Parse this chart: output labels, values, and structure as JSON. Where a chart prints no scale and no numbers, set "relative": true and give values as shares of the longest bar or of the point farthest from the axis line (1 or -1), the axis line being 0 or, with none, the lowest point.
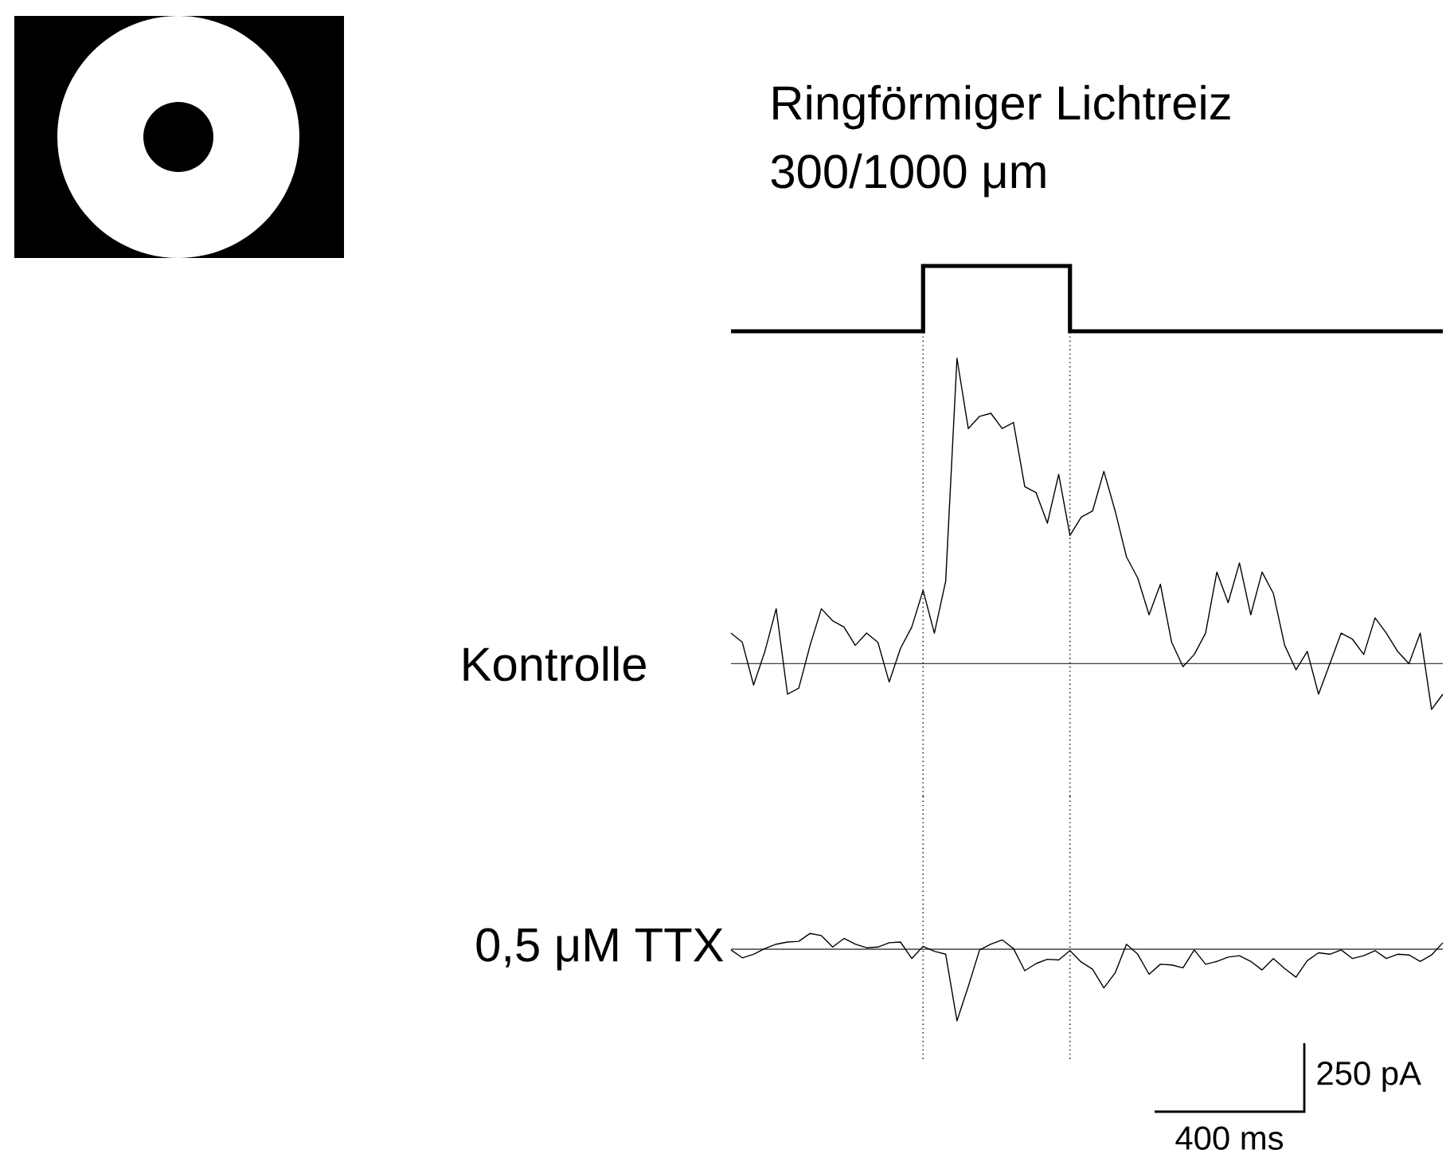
{
  "chart_data": [
    {
      "type": "step",
      "title": "Ringförmiger Lichtreiz",
      "subtitle": "300/1000 μm",
      "relative": true,
      "color": "#000000",
      "categories": [
        null,
        null,
        null,
        null,
        null,
        null,
        null,
        null,
        null,
        null,
        null,
        null,
        null,
        null,
        null,
        null,
        null,
        null,
        null,
        null,
        null,
        null,
        null,
        null,
        null,
        null,
        null,
        null,
        null,
        null,
        null,
        null,
        null,
        null,
        null,
        null,
        null,
        null,
        null,
        null,
        null,
        null,
        null,
        null,
        null,
        null,
        null,
        null,
        null,
        null,
        null,
        null,
        null,
        null,
        null,
        null,
        null,
        null,
        null,
        null,
        null,
        null,
        null,
        null
      ],
      "values": [
        0,
        0,
        0,
        0,
        0,
        0,
        0,
        0,
        0,
        0,
        0,
        0,
        0,
        0,
        0,
        0,
        0,
        1,
        1,
        1,
        1,
        1,
        1,
        1,
        1,
        1,
        1,
        1,
        1,
        1,
        0,
        0,
        0,
        0,
        0,
        0,
        0,
        0,
        0,
        0,
        0,
        0,
        0,
        0,
        0,
        0,
        0,
        0,
        0,
        0,
        0,
        0,
        0,
        0,
        0,
        0,
        0,
        0,
        0,
        0,
        0,
        0,
        0,
        0
      ]
    },
    {
      "type": "line",
      "relative": true,
      "categories": [
        null,
        null,
        null,
        null,
        null,
        null,
        null,
        null,
        null,
        null,
        null,
        null,
        null,
        null,
        null,
        null,
        null,
        null,
        null,
        null,
        null,
        null,
        null,
        null,
        null,
        null,
        null,
        null,
        null,
        null,
        null,
        null,
        null,
        null,
        null,
        null,
        null,
        null,
        null,
        null,
        null,
        null,
        null,
        null,
        null,
        null,
        null,
        null,
        null,
        null,
        null,
        null,
        null,
        null,
        null,
        null,
        null,
        null,
        null,
        null,
        null,
        null,
        null,
        null
      ],
      "series": [
        {
          "name": "Kontrolle",
          "color": "#000000",
          "values": [
            0.1,
            0.07,
            -0.07,
            0.04,
            0.18,
            -0.1,
            -0.08,
            0.06,
            0.18,
            0.14,
            0.12,
            0.06,
            0.1,
            0.07,
            -0.06,
            0.05,
            0.12,
            0.24,
            0.1,
            0.27,
            1.0,
            0.77,
            0.81,
            0.82,
            0.77,
            0.79,
            0.58,
            0.56,
            0.46,
            0.62,
            0.42,
            0.48,
            0.5,
            0.63,
            0.5,
            0.35,
            0.28,
            0.16,
            0.26,
            0.07,
            -0.01,
            0.03,
            0.1,
            0.3,
            0.2,
            0.33,
            0.16,
            0.3,
            0.23,
            0.06,
            -0.02,
            0.04,
            -0.1,
            0.0,
            0.1,
            0.08,
            0.03,
            0.15,
            0.1,
            0.04,
            0.0,
            0.1,
            -0.15,
            -0.1
          ]
        }
      ]
    },
    {
      "type": "line",
      "relative": true,
      "categories": [
        null,
        null,
        null,
        null,
        null,
        null,
        null,
        null,
        null,
        null,
        null,
        null,
        null,
        null,
        null,
        null,
        null,
        null,
        null,
        null,
        null,
        null,
        null,
        null,
        null,
        null,
        null,
        null,
        null,
        null,
        null,
        null,
        null,
        null,
        null,
        null,
        null,
        null,
        null,
        null,
        null,
        null,
        null,
        null,
        null,
        null,
        null,
        null,
        null,
        null,
        null,
        null,
        null,
        null,
        null,
        null,
        null,
        null,
        null,
        null,
        null,
        null,
        null,
        null
      ],
      "annotations": [
        "250 pA",
        "400 ms"
      ],
      "series": [
        {
          "name": "0,5 μM TTX",
          "color": "#000000",
          "values": [
            -0.01,
            -0.12,
            -0.07,
            0.01,
            0.07,
            0.1,
            0.11,
            0.22,
            0.19,
            0.03,
            0.15,
            0.07,
            0.02,
            0.03,
            0.09,
            0.1,
            -0.13,
            0.04,
            -0.03,
            -0.07,
            -1.0,
            -0.52,
            -0.01,
            0.07,
            0.13,
            0.01,
            -0.3,
            -0.2,
            -0.14,
            -0.15,
            -0.02,
            -0.18,
            -0.28,
            -0.54,
            -0.33,
            0.07,
            -0.07,
            -0.35,
            -0.21,
            -0.22,
            -0.26,
            -0.01,
            -0.21,
            -0.17,
            -0.11,
            -0.09,
            -0.17,
            -0.29,
            -0.13,
            -0.27,
            -0.39,
            -0.16,
            -0.05,
            -0.07,
            -0.01,
            -0.13,
            -0.09,
            -0.02,
            -0.13,
            -0.07,
            -0.08,
            -0.17,
            -0.08,
            0.09
          ]
        }
      ]
    }
  ]
}
